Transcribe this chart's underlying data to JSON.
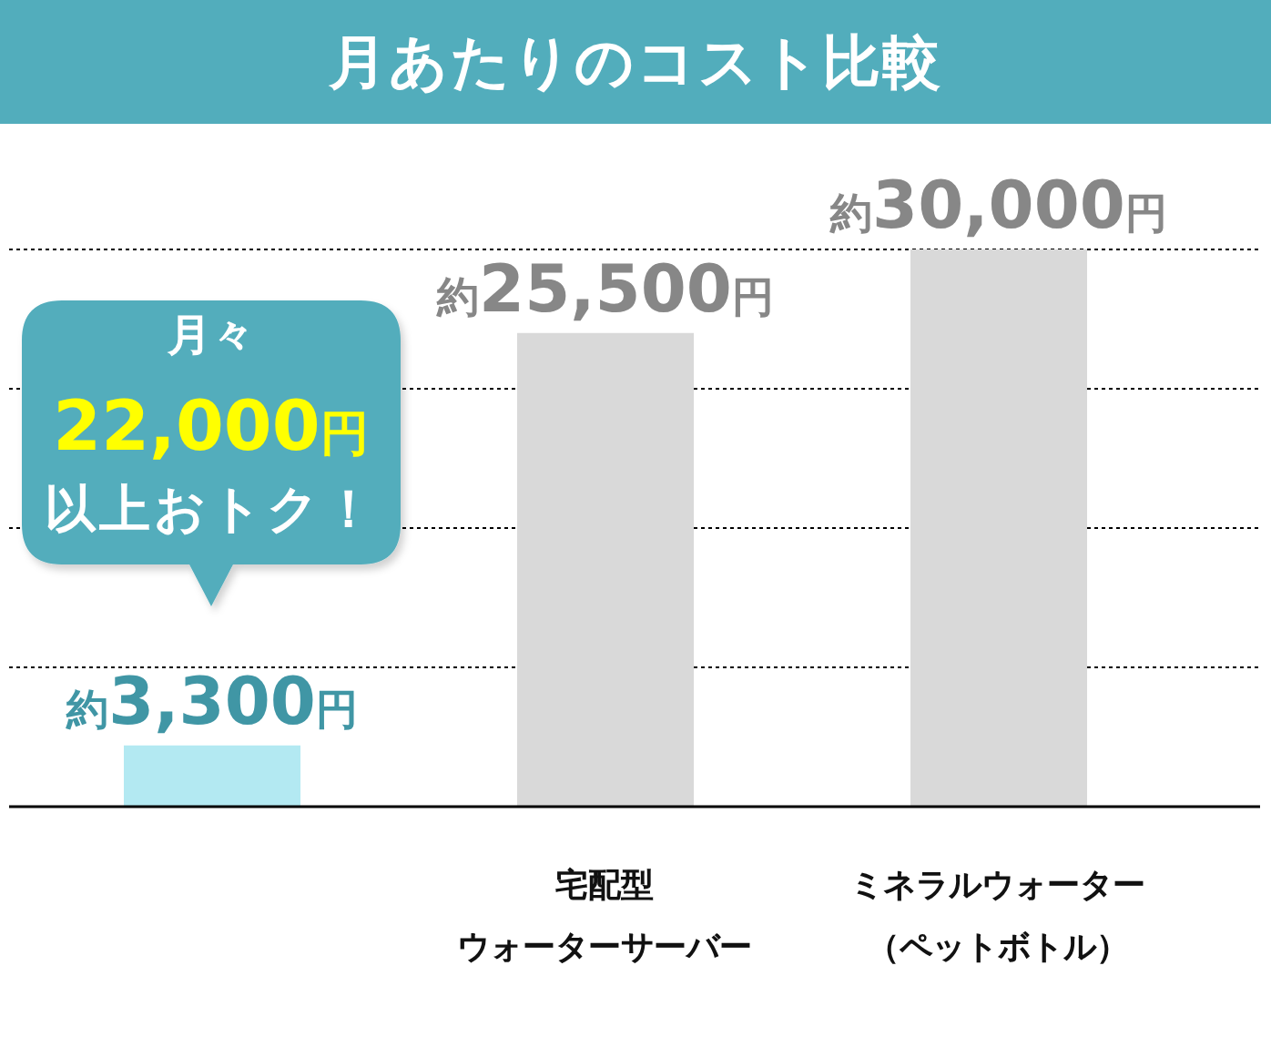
{
  "chart_data": {
    "type": "bar",
    "title": "月あたりのコスト比較",
    "categories": [
      null,
      "宅配型ウォーターサーバー",
      "ミネラルウォーター（ペットボトル）"
    ],
    "values": [
      3300,
      25500,
      30000
    ],
    "colors": [
      "#b3e9f2",
      "#d9d9d9",
      "#d9d9d9"
    ],
    "value_labels": [
      "約3,300円",
      "約25,500円",
      "約30,000円"
    ],
    "annotations": [
      "月々",
      "22,000円",
      "以上おトク！"
    ],
    "grid": "y",
    "tick_labels": "x"
  }
}
